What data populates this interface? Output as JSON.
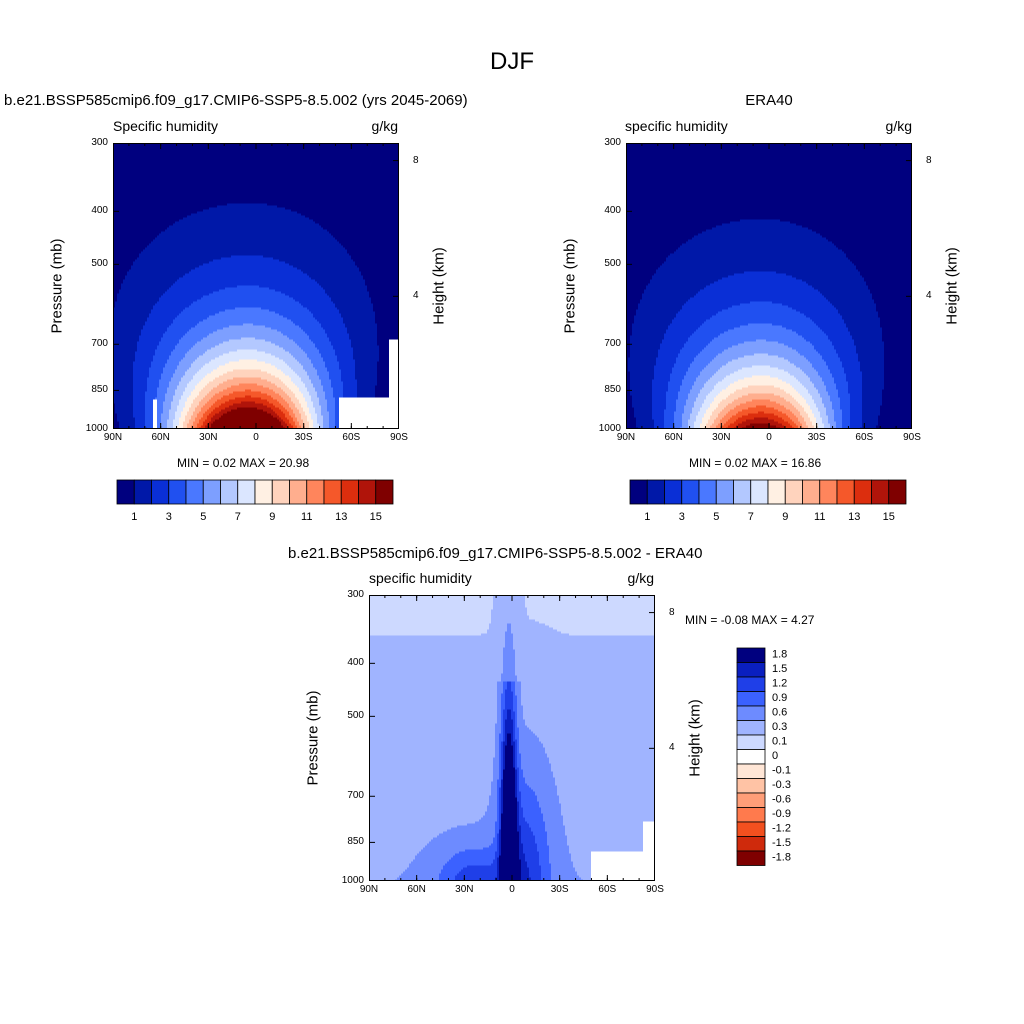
{
  "figure": {
    "title": "DJF"
  },
  "color_levels": {
    "abs_palette": [
      "#00007f",
      "#0018a8",
      "#0a2fd6",
      "#2050f0",
      "#4a78ff",
      "#7d9fff",
      "#b3c8ff",
      "#dbe6ff",
      "#fff0e3",
      "#ffd3bd",
      "#ffae8e",
      "#ff855c",
      "#f5582a",
      "#dc2e0e",
      "#b0140a",
      "#7f0000"
    ],
    "abs_labels": [
      "1",
      "3",
      "5",
      "7",
      "9",
      "11",
      "13",
      "15"
    ],
    "diff_palette": [
      "#00007f",
      "#0a1fbf",
      "#1f3fe8",
      "#3b61ff",
      "#6d8bff",
      "#a0b4ff",
      "#cdd9ff",
      "#ffffff",
      "#ffe6d6",
      "#ffc3a5",
      "#ff9e78",
      "#ff7a4d",
      "#f2501f",
      "#cf2a0c",
      "#7f0000"
    ],
    "diff_labels": [
      "1.8",
      "1.5",
      "1.2",
      "0.9",
      "0.6",
      "0.3",
      "0.1",
      "0",
      "-0.1",
      "-0.3",
      "-0.6",
      "-0.9",
      "-1.2",
      "-1.5",
      "-1.8"
    ]
  },
  "chart_data": [
    {
      "type": "heatmap",
      "title": "b.e21.BSSP585cmip6.f09_g17.CMIP6-SSP5-8.5.002 (yrs 2045-2069)",
      "subtitle_left": "Specific humidity",
      "subtitle_right": "g/kg",
      "xlabel": "",
      "ylabel": "Pressure (mb)",
      "y2label": "Height (km)",
      "x_ticks": [
        "90N",
        "60N",
        "30N",
        "0",
        "30S",
        "60S",
        "90S"
      ],
      "y_ticks": [
        "300",
        "400",
        "500",
        "700",
        "850",
        "1000"
      ],
      "y2_ticks": [
        "8",
        "4"
      ],
      "min_label": "MIN =",
      "min_value": "0.02",
      "max_label": "MAX =",
      "max_value": "20.98",
      "peak_value": 21,
      "peak_lat": 5,
      "xlim": [
        90,
        -90
      ],
      "ylim": [
        1000,
        300
      ]
    },
    {
      "type": "heatmap",
      "title": "ERA40",
      "subtitle_left": "specific humidity",
      "subtitle_right": "g/kg",
      "xlabel": "",
      "ylabel": "Pressure (mb)",
      "y2label": "Height (km)",
      "x_ticks": [
        "90N",
        "60N",
        "30N",
        "0",
        "30S",
        "60S",
        "90S"
      ],
      "y_ticks": [
        "300",
        "400",
        "500",
        "700",
        "850",
        "1000"
      ],
      "y2_ticks": [
        "8",
        "4"
      ],
      "min_label": "MIN =",
      "min_value": "0.02",
      "max_label": "MAX =",
      "max_value": "16.86",
      "peak_value": 17,
      "peak_lat": 5,
      "xlim": [
        90,
        -90
      ],
      "ylim": [
        1000,
        300
      ]
    },
    {
      "type": "heatmap",
      "title": "b.e21.BSSP585cmip6.f09_g17.CMIP6-SSP5-8.5.002 - ERA40",
      "subtitle_left": "specific humidity",
      "subtitle_right": "g/kg",
      "xlabel": "",
      "ylabel": "Pressure (mb)",
      "y2label": "Height (km)",
      "x_ticks": [
        "90N",
        "60N",
        "30N",
        "0",
        "30S",
        "60S",
        "90S"
      ],
      "y_ticks": [
        "300",
        "400",
        "500",
        "700",
        "850",
        "1000"
      ],
      "y2_ticks": [
        "8",
        "4"
      ],
      "min_label": "MIN =",
      "min_value": "-0.08",
      "max_label": "MAX =",
      "max_value": "4.27",
      "xlim": [
        90,
        -90
      ],
      "ylim": [
        1000,
        300
      ]
    }
  ]
}
